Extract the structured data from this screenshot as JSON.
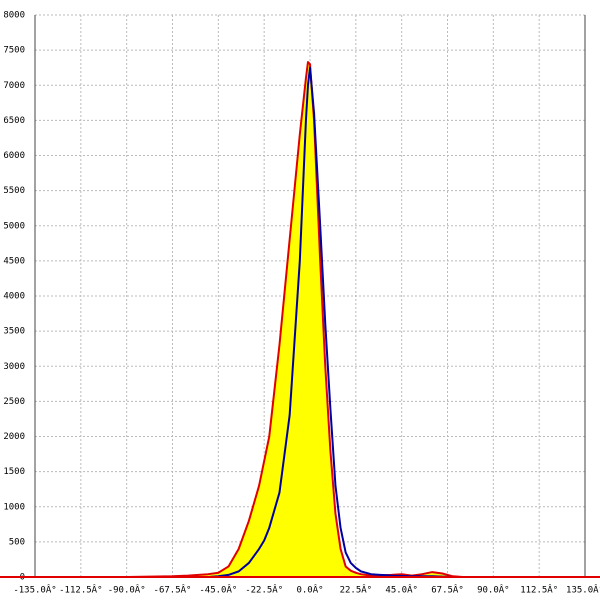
{
  "chart_data": {
    "type": "area",
    "x": [
      -135,
      -90,
      -67.5,
      -60,
      -50,
      -45,
      -40,
      -35,
      -30,
      -25,
      -22.5,
      -20,
      -15,
      -10,
      -5,
      -2,
      -1,
      0,
      2,
      5,
      7.5,
      10,
      12.5,
      15,
      17.5,
      20,
      22.5,
      25,
      30,
      40,
      45,
      50,
      55,
      60,
      65,
      70,
      75,
      90,
      135
    ],
    "series": [
      {
        "color": "#e00000",
        "fill": "#ffff00",
        "values": [
          0,
          0,
          10,
          20,
          40,
          60,
          150,
          400,
          800,
          1300,
          1650,
          2000,
          3300,
          4800,
          6300,
          7100,
          7330,
          7300,
          6500,
          4500,
          3000,
          1800,
          900,
          400,
          150,
          90,
          60,
          40,
          20,
          30,
          40,
          20,
          40,
          70,
          50,
          10,
          0,
          0,
          0
        ]
      },
      {
        "color": "#0000a0",
        "values": [
          0,
          0,
          0,
          0,
          0,
          10,
          30,
          80,
          200,
          400,
          520,
          700,
          1200,
          2300,
          4500,
          6500,
          7000,
          7250,
          6600,
          5000,
          3600,
          2400,
          1300,
          700,
          350,
          200,
          130,
          80,
          40,
          20,
          15,
          10,
          10,
          10,
          5,
          0,
          0,
          0,
          0
        ]
      }
    ],
    "xlim": [
      -135,
      135
    ],
    "xticks": [
      {
        "value": -135,
        "label": "-135.0Â°"
      },
      {
        "value": -112.5,
        "label": "-112.5Â°"
      },
      {
        "value": -90,
        "label": "-90.0Â°"
      },
      {
        "value": -67.5,
        "label": "-67.5Â°"
      },
      {
        "value": -45,
        "label": "-45.0Â°"
      },
      {
        "value": -22.5,
        "label": "-22.5Â°"
      },
      {
        "value": 0,
        "label": "0.0Â°"
      },
      {
        "value": 22.5,
        "label": "22.5Â°"
      },
      {
        "value": 45,
        "label": "45.0Â°"
      },
      {
        "value": 67.5,
        "label": "67.5Â°"
      },
      {
        "value": 90,
        "label": "90.0Â°"
      },
      {
        "value": 112.5,
        "label": "112.5Â°"
      },
      {
        "value": 135,
        "label": "135.0Â°"
      }
    ],
    "ylim": [
      0,
      8000
    ],
    "yticks": [
      0,
      500,
      1000,
      1500,
      2000,
      2500,
      3000,
      3500,
      4000,
      4500,
      5000,
      5500,
      6000,
      6500,
      7000,
      7500,
      8000
    ],
    "grid": true
  }
}
